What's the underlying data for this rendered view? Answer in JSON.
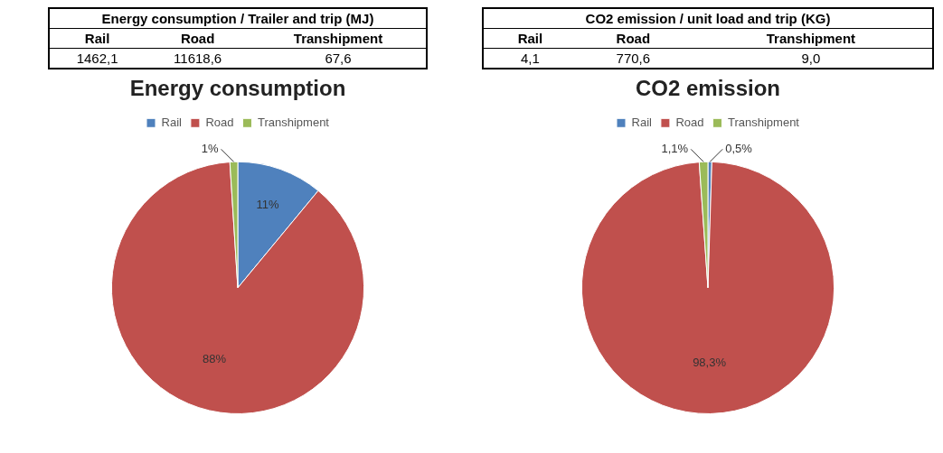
{
  "chart_data": [
    {
      "type": "other",
      "title": "Energy consumption  / Trailer and trip (MJ)",
      "categories": [
        "Rail",
        "Road",
        "Transhipment"
      ],
      "values": [
        1462.1,
        11618.6,
        67.6
      ],
      "value_labels": [
        "1462,1",
        "11618,6",
        "67,6"
      ]
    },
    {
      "type": "other",
      "title": "CO2 emission  / unit load and trip (KG)",
      "categories": [
        "Rail",
        "Road",
        "Transhipment"
      ],
      "values": [
        4.1,
        770.6,
        9.0
      ],
      "value_labels": [
        "4,1",
        "770,6",
        "9,0"
      ]
    },
    {
      "type": "pie",
      "title": "Energy consumption",
      "categories": [
        "Rail",
        "Road",
        "Transhipment"
      ],
      "values": [
        11,
        88,
        1
      ],
      "colors": [
        "#4f81bd",
        "#c0504d",
        "#9bbb59"
      ],
      "value_labels": [
        "11%",
        "88%",
        "1%"
      ],
      "legend": "top"
    },
    {
      "type": "pie",
      "title": "CO2 emission",
      "categories": [
        "Rail",
        "Road",
        "Transhipment"
      ],
      "values": [
        0.5,
        98.3,
        1.1
      ],
      "colors": [
        "#4f81bd",
        "#c0504d",
        "#9bbb59"
      ],
      "value_labels": [
        "0,5%",
        "98,3%",
        "1,1%"
      ],
      "legend": "top"
    }
  ]
}
